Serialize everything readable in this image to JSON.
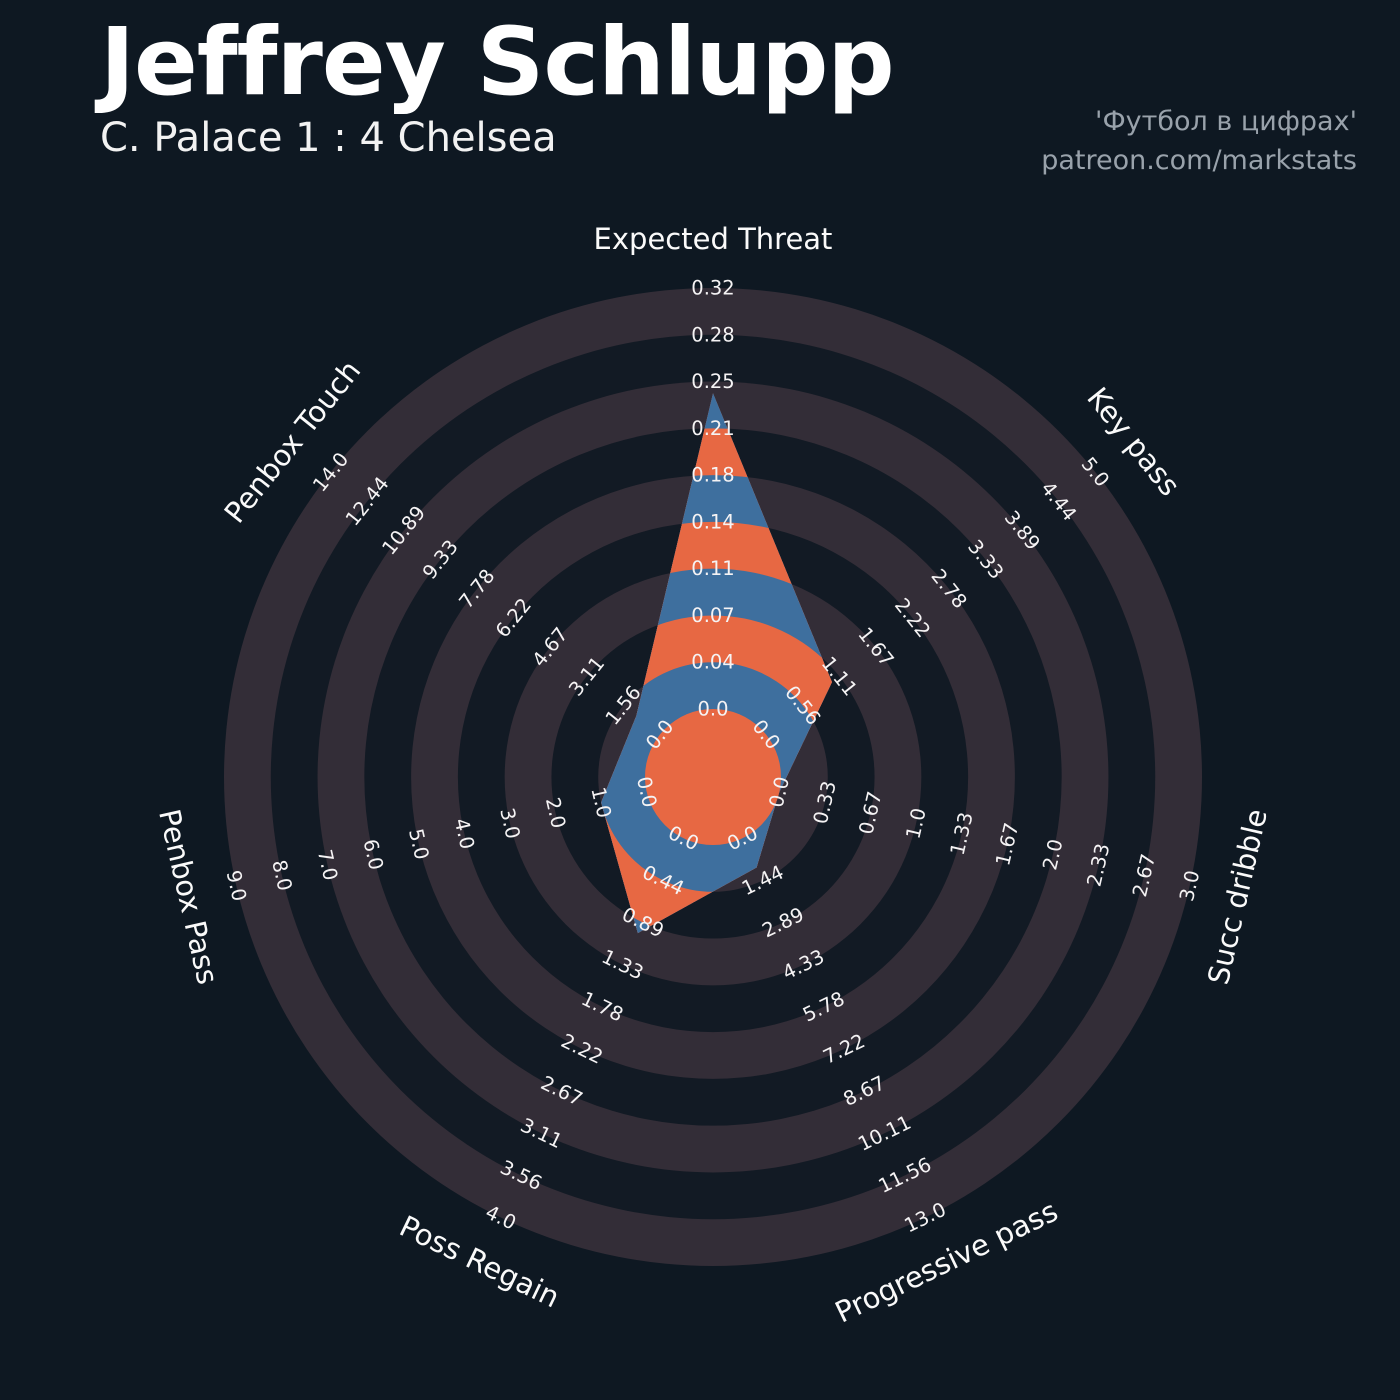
{
  "header": {
    "title": "Jeffrey Schlupp",
    "subtitle": "C. Palace 1 : 4 Chelsea"
  },
  "credit": {
    "line1": "'Футбол в цифрах'",
    "line2": "patreon.com/markstats"
  },
  "chart_data": {
    "type": "radar",
    "title": "",
    "rings": 9,
    "legend_position": "none",
    "axes": [
      {
        "label": "Expected Threat",
        "max": 0.32,
        "value": 0.24,
        "ticks": [
          "0.0",
          "0.04",
          "0.07",
          "0.11",
          "0.14",
          "0.18",
          "0.21",
          "0.25",
          "0.28",
          "0.32"
        ]
      },
      {
        "label": "Key pass",
        "max": 5.0,
        "value": 1.0,
        "ticks": [
          "0.0",
          "0.56",
          "1.11",
          "1.67",
          "2.22",
          "2.78",
          "3.33",
          "3.89",
          "4.44",
          "5.0"
        ]
      },
      {
        "label": "Succ dribble",
        "max": 3.0,
        "value": 0.0,
        "ticks": [
          "0.0",
          "0.33",
          "0.67",
          "1.0",
          "1.33",
          "1.67",
          "2.0",
          "2.33",
          "2.67",
          "3.0"
        ]
      },
      {
        "label": "Progressive pass",
        "max": 13.0,
        "value": 1.0,
        "ticks": [
          "0.0",
          "1.44",
          "2.89",
          "4.33",
          "5.78",
          "7.22",
          "8.67",
          "10.11",
          "11.56",
          "13.0"
        ]
      },
      {
        "label": "Poss Regain",
        "max": 4.0,
        "value": 1.0,
        "ticks": [
          "0.0",
          "0.44",
          "0.89",
          "1.33",
          "1.78",
          "2.22",
          "2.67",
          "3.11",
          "3.56",
          "4.0"
        ]
      },
      {
        "label": "Penbox Pass",
        "max": 9.0,
        "value": 1.0,
        "ticks": [
          "0.0",
          "1.0",
          "2.0",
          "3.0",
          "4.0",
          "5.0",
          "6.0",
          "7.0",
          "8.0",
          "9.0"
        ]
      },
      {
        "label": "Penbox Touch",
        "max": 14.0,
        "value": 1.0,
        "ticks": [
          "0.0",
          "1.56",
          "3.11",
          "4.67",
          "6.22",
          "7.78",
          "9.33",
          "10.89",
          "12.44",
          "14.0"
        ]
      }
    ],
    "colors": {
      "background": "#0e1822",
      "ring_dark": "#121a24",
      "ring_light": "#332d37",
      "fill_blue": "#3e6f9e",
      "band_orange": "#e76843",
      "tick_text": "#f5f3f4",
      "axis_text": "#fafafa",
      "title_text": "#ffffff",
      "credit_text": "#99a2ab"
    }
  }
}
